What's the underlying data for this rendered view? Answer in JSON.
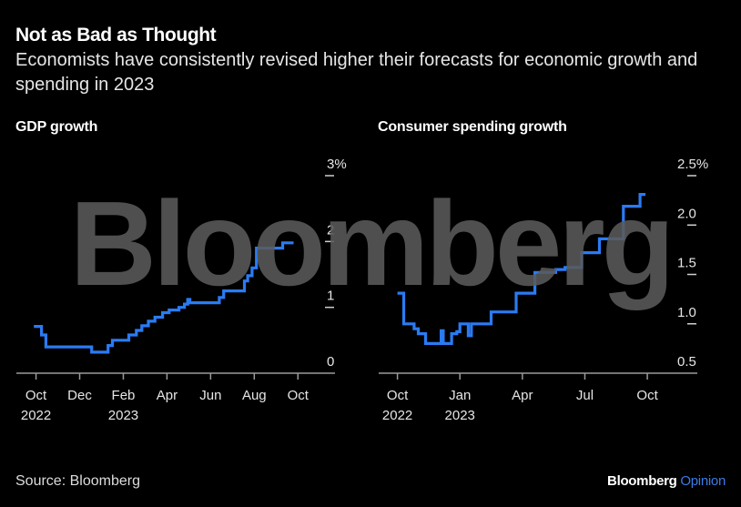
{
  "header": {
    "title": "Not as Bad as Thought",
    "subtitle": "Economists have consistently revised higher their forecasts for economic growth and spending in 2023"
  },
  "footer": {
    "source": "Source: Bloomberg",
    "brand_name": "Bloomberg",
    "brand_section": "Opinion"
  },
  "watermark": "Bloomberg",
  "colors": {
    "background": "#000000",
    "line": "#2a7bf3",
    "axis": "#9a9a9a",
    "watermark": "#5a5a5a",
    "brand_accent": "#3b7be6"
  },
  "chart_data": [
    {
      "type": "line",
      "title": "GDP growth",
      "xlabel": "",
      "ylabel": "",
      "x_unit": "months since Oct 2022",
      "xlim": [
        -0.9,
        13.7
      ],
      "ylim": [
        0,
        3
      ],
      "y_ticks": [
        {
          "value": 3,
          "label": "3%"
        },
        {
          "value": 2,
          "label": "2"
        },
        {
          "value": 1,
          "label": "1"
        },
        {
          "value": 0,
          "label": "0"
        }
      ],
      "x_ticks": [
        {
          "value": 0,
          "label": "Oct",
          "sublabel": "2022"
        },
        {
          "value": 2,
          "label": "Dec",
          "sublabel": ""
        },
        {
          "value": 4,
          "label": "Feb",
          "sublabel": "2023"
        },
        {
          "value": 6,
          "label": "Apr",
          "sublabel": ""
        },
        {
          "value": 8,
          "label": "Jun",
          "sublabel": ""
        },
        {
          "value": 10,
          "label": "Aug",
          "sublabel": ""
        },
        {
          "value": 12,
          "label": "Oct",
          "sublabel": ""
        }
      ],
      "series": [
        {
          "name": "GDP growth forecast",
          "step": true,
          "x": [
            -0.1,
            0.25,
            0.45,
            2.55,
            3.3,
            3.5,
            4.25,
            4.6,
            4.85,
            5.15,
            5.45,
            5.8,
            6.1,
            6.55,
            6.8,
            6.95,
            7.05,
            8.4,
            8.6,
            8.8,
            9.55,
            9.7,
            9.9,
            10.1,
            11.2,
            11.3,
            11.55
          ],
          "values": [
            0.71,
            0.58,
            0.4,
            0.32,
            0.42,
            0.5,
            0.58,
            0.65,
            0.72,
            0.79,
            0.85,
            0.92,
            0.96,
            1.0,
            1.05,
            1.12,
            1.07,
            1.15,
            1.25,
            1.25,
            1.4,
            1.48,
            1.6,
            1.9,
            1.9,
            1.98,
            1.98
          ]
        }
      ],
      "grid": false,
      "legend": "none"
    },
    {
      "type": "line",
      "title": "Consumer spending growth",
      "xlabel": "",
      "ylabel": "",
      "x_unit": "months since Oct 2022",
      "xlim": [
        -0.9,
        14.4
      ],
      "ylim": [
        0.5,
        2.5
      ],
      "y_ticks": [
        {
          "value": 2.5,
          "label": "2.5%"
        },
        {
          "value": 2.0,
          "label": "2.0"
        },
        {
          "value": 1.5,
          "label": "1.5"
        },
        {
          "value": 1.0,
          "label": "1.0"
        },
        {
          "value": 0.5,
          "label": "0.5"
        }
      ],
      "x_ticks": [
        {
          "value": 0,
          "label": "Oct",
          "sublabel": "2022"
        },
        {
          "value": 3,
          "label": "Jan",
          "sublabel": "2023"
        },
        {
          "value": 6,
          "label": "Apr",
          "sublabel": ""
        },
        {
          "value": 9,
          "label": "Jul",
          "sublabel": ""
        },
        {
          "value": 12,
          "label": "Oct",
          "sublabel": ""
        }
      ],
      "series": [
        {
          "name": "Consumer spending growth forecast",
          "step": true,
          "x": [
            0.0,
            0.3,
            0.8,
            1.0,
            1.35,
            2.0,
            2.1,
            2.2,
            2.6,
            2.85,
            3.0,
            3.3,
            3.4,
            3.55,
            4.5,
            5.7,
            6.6,
            7.6,
            8.05,
            8.85,
            9.7,
            10.85,
            11.65
          ],
          "values": [
            1.31,
            1.0,
            0.95,
            0.9,
            0.8,
            0.8,
            0.93,
            0.8,
            0.9,
            0.92,
            1.0,
            1.0,
            0.88,
            1.0,
            1.12,
            1.31,
            1.52,
            1.55,
            1.57,
            1.72,
            1.86,
            2.19,
            2.31
          ]
        }
      ],
      "grid": false,
      "legend": "none"
    }
  ]
}
